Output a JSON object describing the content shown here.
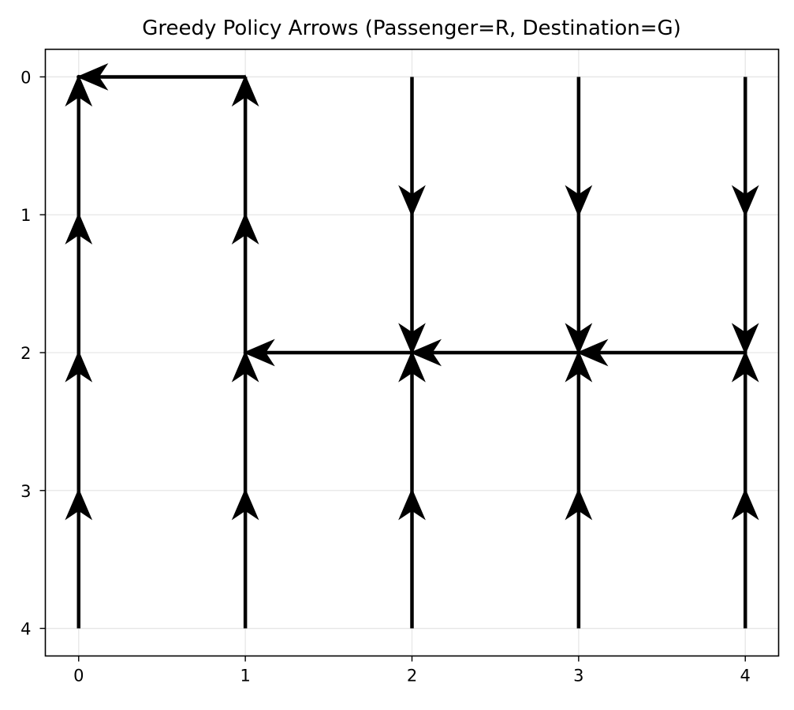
{
  "chart_data": {
    "type": "quiver",
    "title": "Greedy Policy Arrows (Passenger=R, Destination=G)",
    "xlabel": "",
    "ylabel": "",
    "xlim": [
      -0.2,
      4.2
    ],
    "ylim": [
      4.2,
      -0.2
    ],
    "y_inverted": true,
    "xticks": [
      0,
      1,
      2,
      3,
      4
    ],
    "yticks": [
      0,
      1,
      2,
      3,
      4
    ],
    "grid": true,
    "legend": "none",
    "arrow_color": "#000000",
    "grid_color": "#e6e6e6",
    "arrows": [
      {
        "x": 0,
        "y": 0,
        "dx": 0,
        "dy": 0
      },
      {
        "x": 1,
        "y": 0,
        "dx": -1,
        "dy": 0
      },
      {
        "x": 2,
        "y": 0,
        "dx": 0,
        "dy": 1
      },
      {
        "x": 3,
        "y": 0,
        "dx": 0,
        "dy": 1
      },
      {
        "x": 4,
        "y": 0,
        "dx": 0,
        "dy": 1
      },
      {
        "x": 0,
        "y": 1,
        "dx": 0,
        "dy": -1
      },
      {
        "x": 1,
        "y": 1,
        "dx": 0,
        "dy": -1
      },
      {
        "x": 2,
        "y": 1,
        "dx": 0,
        "dy": 1
      },
      {
        "x": 3,
        "y": 1,
        "dx": 0,
        "dy": 1
      },
      {
        "x": 4,
        "y": 1,
        "dx": 0,
        "dy": 1
      },
      {
        "x": 0,
        "y": 2,
        "dx": 0,
        "dy": -1
      },
      {
        "x": 1,
        "y": 2,
        "dx": 0,
        "dy": -1
      },
      {
        "x": 2,
        "y": 2,
        "dx": -1,
        "dy": 0
      },
      {
        "x": 3,
        "y": 2,
        "dx": -1,
        "dy": 0
      },
      {
        "x": 4,
        "y": 2,
        "dx": -1,
        "dy": 0
      },
      {
        "x": 0,
        "y": 3,
        "dx": 0,
        "dy": -1
      },
      {
        "x": 1,
        "y": 3,
        "dx": 0,
        "dy": -1
      },
      {
        "x": 2,
        "y": 3,
        "dx": 0,
        "dy": -1
      },
      {
        "x": 3,
        "y": 3,
        "dx": 0,
        "dy": -1
      },
      {
        "x": 4,
        "y": 3,
        "dx": 0,
        "dy": -1
      },
      {
        "x": 0,
        "y": 4,
        "dx": 0,
        "dy": -1
      },
      {
        "x": 1,
        "y": 4,
        "dx": 0,
        "dy": -1
      },
      {
        "x": 2,
        "y": 4,
        "dx": 0,
        "dy": -1
      },
      {
        "x": 3,
        "y": 4,
        "dx": 0,
        "dy": -1
      },
      {
        "x": 4,
        "y": 4,
        "dx": 0,
        "dy": -1
      }
    ]
  }
}
